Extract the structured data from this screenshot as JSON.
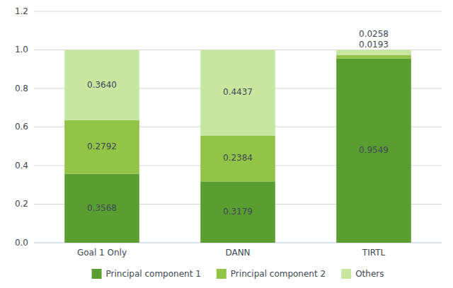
{
  "chart_data": {
    "type": "bar",
    "stacked": true,
    "categories": [
      "Goal 1 Only",
      "DANN",
      "TIRTL"
    ],
    "series": [
      {
        "name": "Principal component 1",
        "color": "#5a9e32",
        "values": [
          0.3568,
          0.3179,
          0.9549
        ]
      },
      {
        "name": "Principal component 2",
        "color": "#92c448",
        "values": [
          0.2792,
          0.2384,
          0.0193
        ]
      },
      {
        "name": "Others",
        "color": "#c8e6a0",
        "values": [
          0.364,
          0.4437,
          0.0258
        ],
        "value_labels": [
          "0.3640",
          "0.4437",
          "0.0258"
        ]
      }
    ],
    "ylim": [
      0,
      1.2
    ],
    "yticks": [
      {
        "value": 0,
        "label": "0.0"
      },
      0.2,
      0.4,
      0.6,
      0.8,
      {
        "value": 1,
        "label": "1.0"
      },
      1.2
    ],
    "grid": true,
    "legend": "bottom",
    "data_labels": true
  }
}
